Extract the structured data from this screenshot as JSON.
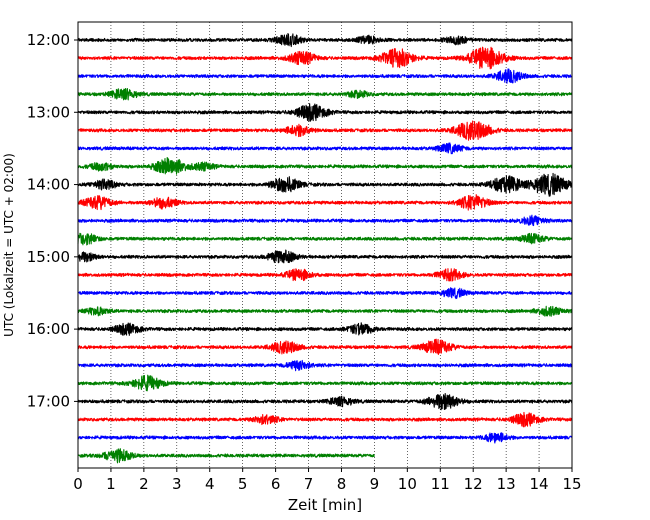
{
  "chart_data": {
    "type": "line",
    "title": "",
    "xlabel": "Zeit  [min]",
    "ylabel": "UTC (Lokalzeit = UTC + 02:00)",
    "xlim": [
      0,
      15
    ],
    "x_ticks": [
      0,
      1,
      2,
      3,
      4,
      5,
      6,
      7,
      8,
      9,
      10,
      11,
      12,
      13,
      14,
      15
    ],
    "grid": "vertical dotted lines at each minute",
    "y_tick_labels": [
      "12:00",
      "13:00",
      "14:00",
      "15:00",
      "16:00",
      "17:00"
    ],
    "colors": [
      "#000000",
      "#ff0000",
      "#0000ff",
      "#008000"
    ],
    "series": [
      {
        "start": "12:00",
        "color": "#000000",
        "x_range": [
          0,
          15
        ],
        "events": [
          [
            6.4,
            0.6
          ],
          [
            8.8,
            0.4
          ],
          [
            11.5,
            0.4
          ]
        ]
      },
      {
        "start": "12:15",
        "color": "#ff0000",
        "x_range": [
          0,
          15
        ],
        "events": [
          [
            6.8,
            0.7
          ],
          [
            9.7,
            1.0
          ],
          [
            12.4,
            1.2
          ]
        ]
      },
      {
        "start": "12:30",
        "color": "#0000ff",
        "x_range": [
          0,
          15
        ],
        "events": [
          [
            13.1,
            0.7
          ]
        ]
      },
      {
        "start": "12:45",
        "color": "#008000",
        "x_range": [
          0,
          15
        ],
        "events": [
          [
            1.4,
            0.6
          ],
          [
            8.5,
            0.35
          ]
        ]
      },
      {
        "start": "13:00",
        "color": "#000000",
        "x_range": [
          0,
          15
        ],
        "events": [
          [
            7.1,
            0.9
          ]
        ]
      },
      {
        "start": "13:15",
        "color": "#ff0000",
        "x_range": [
          0,
          15
        ],
        "events": [
          [
            6.7,
            0.6
          ],
          [
            12.0,
            1.1
          ]
        ]
      },
      {
        "start": "13:30",
        "color": "#0000ff",
        "x_range": [
          0,
          15
        ],
        "events": [
          [
            11.3,
            0.5
          ]
        ]
      },
      {
        "start": "13:45",
        "color": "#008000",
        "x_range": [
          0,
          15
        ],
        "events": [
          [
            0.7,
            0.4
          ],
          [
            2.8,
            0.9
          ],
          [
            3.8,
            0.4
          ]
        ]
      },
      {
        "start": "14:00",
        "color": "#000000",
        "x_range": [
          0,
          15
        ],
        "events": [
          [
            0.8,
            0.5
          ],
          [
            6.3,
            0.8
          ],
          [
            13.0,
            0.9
          ],
          [
            14.3,
            1.2
          ]
        ]
      },
      {
        "start": "14:15",
        "color": "#ff0000",
        "x_range": [
          0,
          15
        ],
        "events": [
          [
            0.6,
            0.7
          ],
          [
            2.6,
            0.6
          ],
          [
            12.0,
            0.8
          ]
        ]
      },
      {
        "start": "14:30",
        "color": "#0000ff",
        "x_range": [
          0,
          15
        ],
        "events": [
          [
            13.8,
            0.5
          ]
        ]
      },
      {
        "start": "14:45",
        "color": "#008000",
        "x_range": [
          0,
          15
        ],
        "events": [
          [
            0.2,
            0.6
          ],
          [
            13.8,
            0.5
          ]
        ]
      },
      {
        "start": "15:00",
        "color": "#000000",
        "x_range": [
          0,
          15
        ],
        "events": [
          [
            0.2,
            0.5
          ],
          [
            6.2,
            0.7
          ]
        ]
      },
      {
        "start": "15:15",
        "color": "#ff0000",
        "x_range": [
          0,
          15
        ],
        "events": [
          [
            6.7,
            0.6
          ],
          [
            11.3,
            0.6
          ]
        ]
      },
      {
        "start": "15:30",
        "color": "#0000ff",
        "x_range": [
          0,
          15
        ],
        "events": [
          [
            11.4,
            0.5
          ]
        ]
      },
      {
        "start": "15:45",
        "color": "#008000",
        "x_range": [
          0,
          15
        ],
        "events": [
          [
            0.6,
            0.4
          ],
          [
            14.3,
            0.5
          ]
        ]
      },
      {
        "start": "16:00",
        "color": "#000000",
        "x_range": [
          0,
          15
        ],
        "events": [
          [
            1.5,
            0.6
          ],
          [
            8.6,
            0.6
          ]
        ]
      },
      {
        "start": "16:15",
        "color": "#ff0000",
        "x_range": [
          0,
          15
        ],
        "events": [
          [
            6.3,
            0.7
          ],
          [
            10.9,
            0.8
          ]
        ]
      },
      {
        "start": "16:30",
        "color": "#0000ff",
        "x_range": [
          0,
          15
        ],
        "events": [
          [
            6.7,
            0.5
          ]
        ]
      },
      {
        "start": "16:45",
        "color": "#008000",
        "x_range": [
          0,
          15
        ],
        "events": [
          [
            2.1,
            0.8
          ]
        ]
      },
      {
        "start": "17:00",
        "color": "#000000",
        "x_range": [
          0,
          15
        ],
        "events": [
          [
            8.0,
            0.5
          ],
          [
            11.1,
            0.9
          ]
        ]
      },
      {
        "start": "17:15",
        "color": "#ff0000",
        "x_range": [
          0,
          15
        ],
        "events": [
          [
            5.7,
            0.5
          ],
          [
            13.6,
            0.7
          ]
        ]
      },
      {
        "start": "17:30",
        "color": "#0000ff",
        "x_range": [
          0,
          15
        ],
        "events": [
          [
            12.7,
            0.5
          ]
        ]
      },
      {
        "start": "17:45",
        "color": "#008000",
        "x_range": [
          0,
          9
        ],
        "events": [
          [
            1.2,
            0.7
          ]
        ]
      }
    ]
  }
}
